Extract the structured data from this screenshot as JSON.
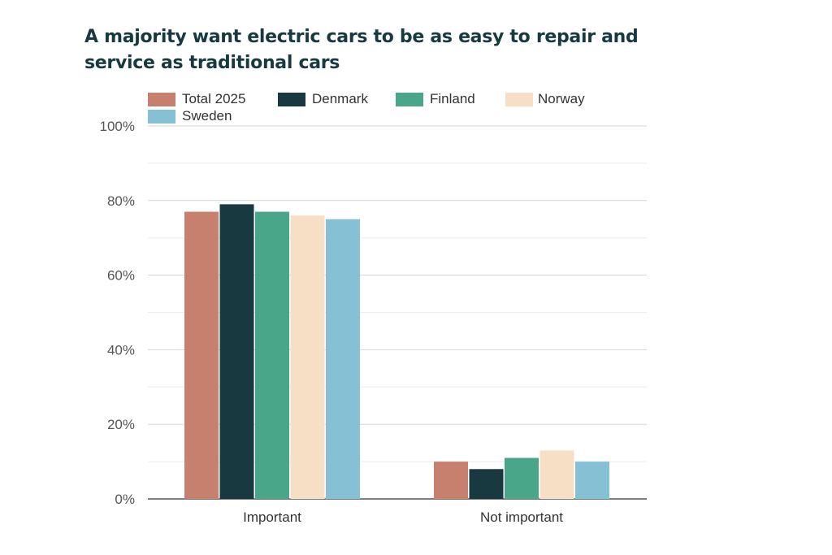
{
  "chart_data": {
    "type": "bar",
    "title": "A majority want electric cars to be as easy to repair and service as traditional cars",
    "xlabel": "",
    "ylabel": "",
    "categories": [
      "Important",
      "Not important"
    ],
    "series": [
      {
        "name": "Total 2025",
        "color": "#c77f6e",
        "values": [
          77,
          10
        ]
      },
      {
        "name": "Denmark",
        "color": "#17393f",
        "values": [
          79,
          8
        ]
      },
      {
        "name": "Finland",
        "color": "#4aa688",
        "values": [
          77,
          11
        ]
      },
      {
        "name": "Norway",
        "color": "#f7dfc6",
        "values": [
          76,
          13
        ]
      },
      {
        "name": "Sweden",
        "color": "#86c0d5",
        "values": [
          75,
          10
        ]
      }
    ],
    "ylim": [
      0,
      100
    ],
    "yticks": [
      "0%",
      "20%",
      "40%",
      "60%",
      "80%",
      "100%"
    ],
    "ytick_values": [
      0,
      20,
      40,
      60,
      80,
      100
    ],
    "grid": true,
    "legend_position": "top-left"
  }
}
